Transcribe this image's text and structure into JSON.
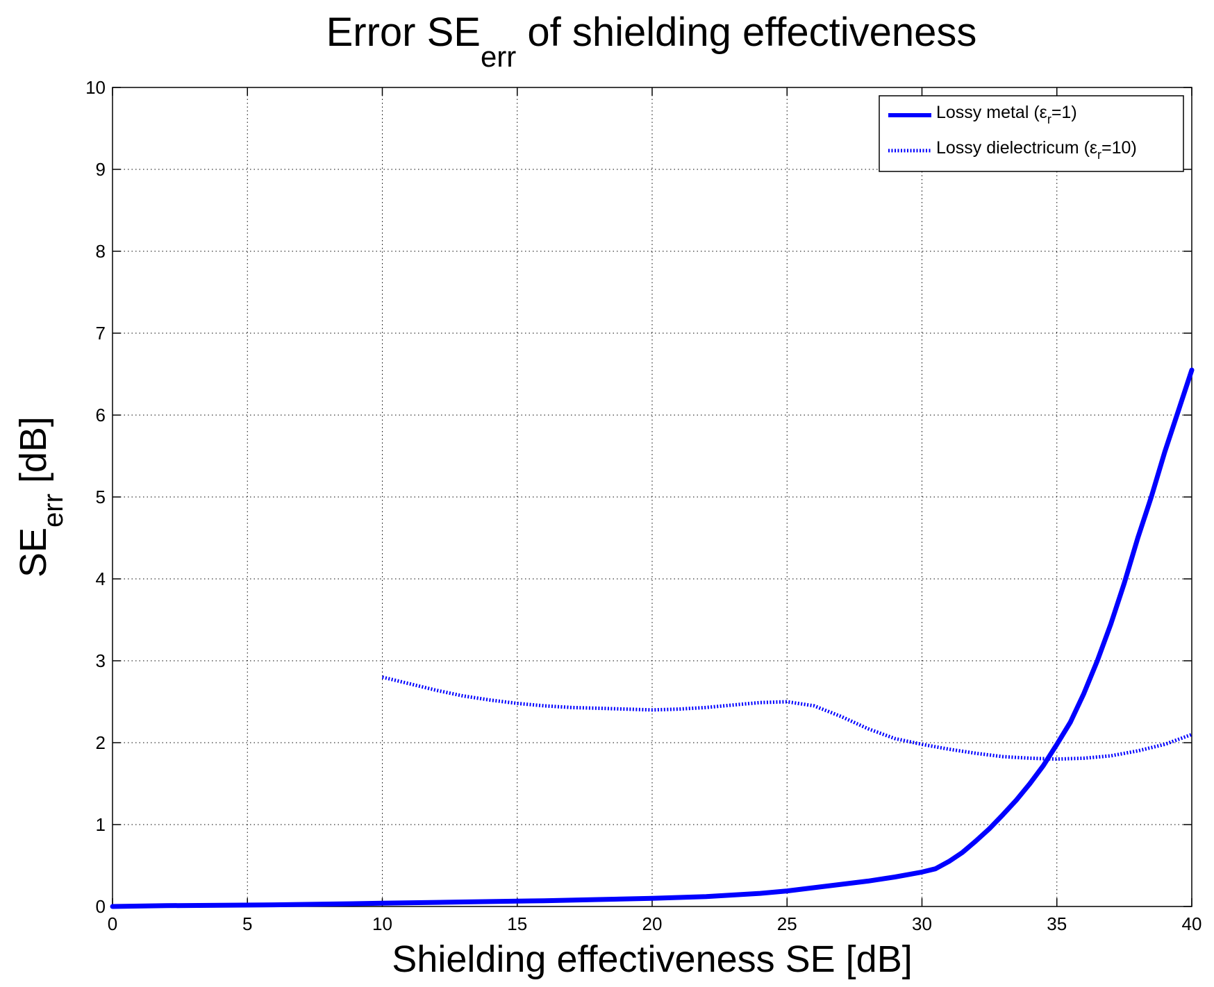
{
  "chart_data": {
    "type": "line",
    "title": {
      "main": "Error SE",
      "sub": "err",
      "rest": " of shielding effectiveness"
    },
    "xlabel": "Shielding effectiveness SE [dB]",
    "ylabel": {
      "main": "SE",
      "sub": "err",
      "rest": " [dB]"
    },
    "xlim": [
      0,
      40
    ],
    "ylim": [
      0,
      10
    ],
    "x_ticks": [
      0,
      5,
      10,
      15,
      20,
      25,
      30,
      35,
      40
    ],
    "y_ticks": [
      0,
      1,
      2,
      3,
      4,
      5,
      6,
      7,
      8,
      9,
      10
    ],
    "grid": true,
    "legend_position": "top-right",
    "series": [
      {
        "name": "Lossy metal (εr=1)",
        "legend": {
          "pre": "Lossy metal (ε",
          "sub": "r",
          "post": "=1)"
        },
        "style": "solid",
        "color": "#0000ff",
        "x": [
          0,
          2,
          4,
          6,
          8,
          10,
          12,
          14,
          16,
          18,
          20,
          22,
          24,
          25,
          26,
          27,
          28,
          29,
          30,
          30.5,
          31,
          31.5,
          32,
          32.5,
          33,
          33.5,
          34,
          34.5,
          35,
          35.5,
          36,
          36.5,
          37,
          37.5,
          38,
          38.5,
          39,
          39.5,
          40
        ],
        "y": [
          0.0,
          0.01,
          0.015,
          0.02,
          0.03,
          0.04,
          0.05,
          0.06,
          0.07,
          0.085,
          0.1,
          0.12,
          0.16,
          0.19,
          0.23,
          0.27,
          0.31,
          0.36,
          0.42,
          0.46,
          0.55,
          0.66,
          0.8,
          0.95,
          1.12,
          1.3,
          1.5,
          1.72,
          1.98,
          2.25,
          2.6,
          3.0,
          3.45,
          3.95,
          4.5,
          5.0,
          5.55,
          6.05,
          6.55
        ]
      },
      {
        "name": "Lossy dielectricum (εr=10)",
        "legend": {
          "pre": "Lossy dielectricum (ε",
          "sub": "r",
          "post": "=10)"
        },
        "style": "dotted",
        "color": "#0000ff",
        "x": [
          10,
          11,
          12,
          13,
          14,
          15,
          16,
          17,
          18,
          19,
          20,
          21,
          22,
          23,
          24,
          25,
          26,
          27,
          28,
          29,
          30,
          31,
          32,
          33,
          34,
          35,
          36,
          37,
          38,
          39,
          40
        ],
        "y": [
          2.8,
          2.72,
          2.64,
          2.57,
          2.52,
          2.48,
          2.45,
          2.43,
          2.42,
          2.41,
          2.4,
          2.41,
          2.43,
          2.46,
          2.49,
          2.5,
          2.45,
          2.32,
          2.17,
          2.05,
          1.98,
          1.92,
          1.87,
          1.83,
          1.81,
          1.8,
          1.81,
          1.84,
          1.9,
          1.98,
          2.1
        ]
      }
    ]
  }
}
